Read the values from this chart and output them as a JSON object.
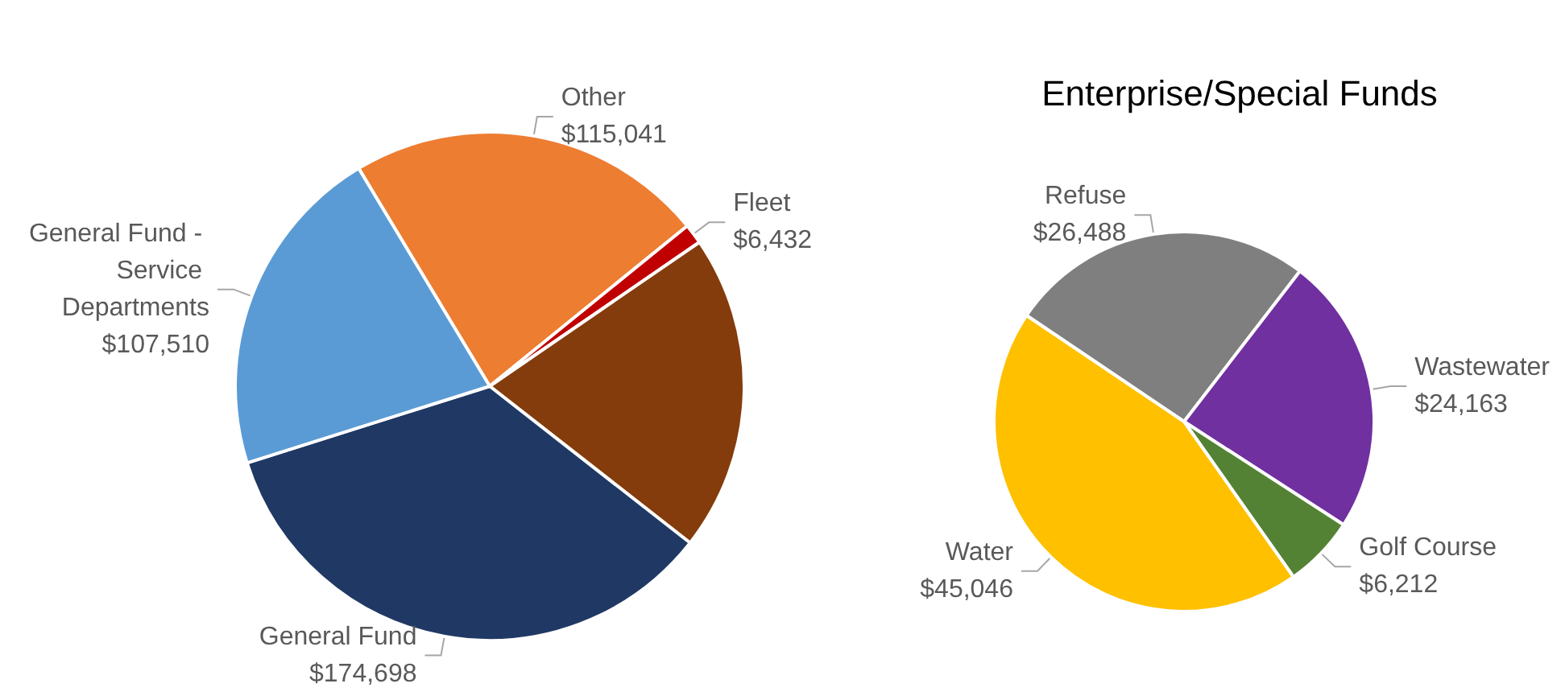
{
  "chart_data": [
    {
      "type": "pie",
      "categories": [
        "Other",
        "Fleet",
        null,
        "General Fund",
        "General Fund - Service Departments"
      ],
      "values": [
        115041,
        6432,
        101909,
        174698,
        107510
      ],
      "value_labels": [
        "$115,041",
        "$6,432",
        null,
        "$174,698",
        "$107,510"
      ],
      "colors": [
        "#ed7d31",
        "#c00000",
        "#843c0c",
        "#203864",
        "#5b9bd5"
      ]
    },
    {
      "type": "pie",
      "title": "Enterprise/Special Funds",
      "categories": [
        "Refuse",
        "Wastewater",
        "Golf Course",
        "Water"
      ],
      "values": [
        26488,
        24163,
        6212,
        45046
      ],
      "value_labels": [
        "$26,488",
        "$24,163",
        "$6,212",
        "$45,046"
      ],
      "colors": [
        "#7f7f7f",
        "#7030a0",
        "#548235",
        "#ffc000"
      ]
    }
  ]
}
